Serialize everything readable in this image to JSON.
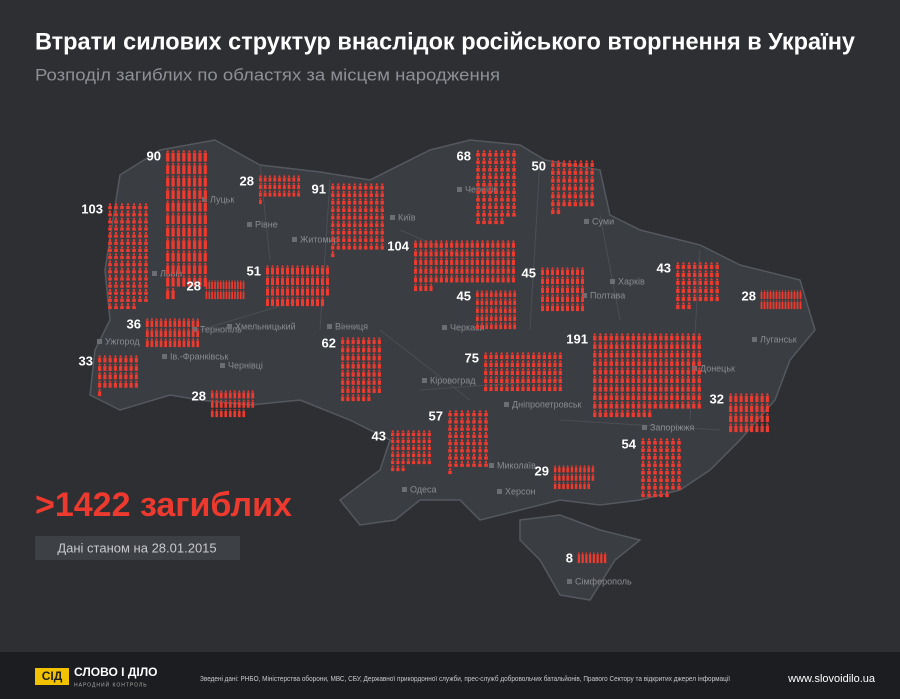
{
  "header": {
    "title": "Втрати силових структур внаслідок російського вторгнення в Україну",
    "subtitle": "Розподіл загиблих по областях за місцем народження"
  },
  "map": {
    "regions": [
      {
        "value": 90
      },
      {
        "value": 103
      },
      {
        "value": 28
      },
      {
        "value": 91
      },
      {
        "value": 68
      },
      {
        "value": 50
      },
      {
        "value": 104
      },
      {
        "value": 28
      },
      {
        "value": 51
      },
      {
        "value": 36
      },
      {
        "value": 33
      },
      {
        "value": 62
      },
      {
        "value": 28
      },
      {
        "value": 45
      },
      {
        "value": 45
      },
      {
        "value": 43
      },
      {
        "value": 28
      },
      {
        "value": 191
      },
      {
        "value": 75
      },
      {
        "value": 32
      },
      {
        "value": 57
      },
      {
        "value": 43
      },
      {
        "value": 54
      },
      {
        "value": 29
      },
      {
        "value": 8
      }
    ],
    "cities": [
      "Луцьк",
      "Рівне",
      "Житомир",
      "Київ",
      "Чернігів",
      "Суми",
      "Харків",
      "Полтава",
      "Львів",
      "Тернопіль",
      "Хмельницький",
      "Вінниця",
      "Ужгород",
      "Ів.-Франківськ",
      "Чернівці",
      "Черкаси",
      "Кіровоград",
      "Дніпропетровськ",
      "Донецьк",
      "Луганськ",
      "Запоріжжя",
      "Миколаїв",
      "Одеса",
      "Херсон",
      "Сімферополь"
    ]
  },
  "summary": {
    "total": ">1422 загиблих",
    "date": "Дані станом на 28.01.2015"
  },
  "footer": {
    "logo": "СІД",
    "brand": "СЛОВО І ДІЛО",
    "tagline": "НАРОДНИЙ КОНТРОЛЬ",
    "sources": "Зведені дані: РНБО, Міністерства оборони, МВС, СБУ, Державної прикордонної служби, прес-служб добровольчих батальйонів, Правого Сектору та відкритих джерел інформації",
    "url": "www.slovoidilo.ua"
  }
}
